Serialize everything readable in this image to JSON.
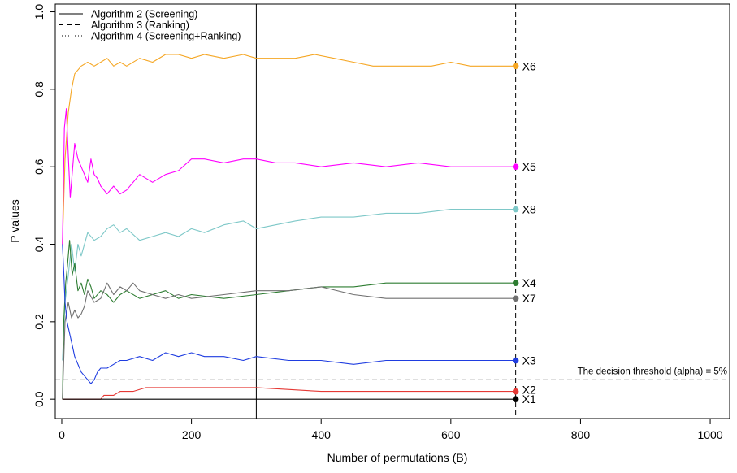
{
  "chart_data": {
    "type": "line",
    "title": "",
    "xlabel": "Number of permutations (B)",
    "ylabel": "P  values",
    "xlim": [
      -10,
      1030
    ],
    "ylim": [
      -0.05,
      1.02
    ],
    "x_ticks": [
      0,
      200,
      400,
      600,
      800,
      1000
    ],
    "y_ticks": [
      0.0,
      0.2,
      0.4,
      0.6,
      0.8,
      1.0
    ],
    "x_tick_labels": [
      "0",
      "200",
      "400",
      "600",
      "800",
      "1000"
    ],
    "y_tick_labels": [
      "0.0",
      "0.2",
      "0.4",
      "0.6",
      "0.8",
      "1.0"
    ],
    "legend": {
      "position": "top-left",
      "entries": [
        {
          "label": "Algorithm 2 (Screening)",
          "style": "solid"
        },
        {
          "label": "Algorithm 3 (Ranking)",
          "style": "dashed"
        },
        {
          "label": "Algorithm 4 (Screening+Ranking)",
          "style": "dotted"
        }
      ]
    },
    "reference_lines": [
      {
        "orientation": "vertical",
        "x": 300,
        "style": "solid"
      },
      {
        "orientation": "vertical",
        "x": 700,
        "style": "dashed"
      },
      {
        "orientation": "horizontal",
        "y": 0.05,
        "style": "dashed",
        "label": "The decision threshold (alpha) = 5%"
      }
    ],
    "series": [
      {
        "name": "X6",
        "color": "#f5a623",
        "x": [
          1,
          5,
          10,
          15,
          20,
          30,
          40,
          50,
          60,
          70,
          80,
          90,
          100,
          120,
          140,
          160,
          180,
          200,
          220,
          250,
          280,
          300,
          330,
          360,
          390,
          420,
          450,
          480,
          510,
          540,
          570,
          600,
          630,
          660,
          700
        ],
        "y": [
          0.4,
          0.62,
          0.74,
          0.8,
          0.84,
          0.86,
          0.87,
          0.86,
          0.87,
          0.88,
          0.86,
          0.87,
          0.86,
          0.88,
          0.87,
          0.89,
          0.89,
          0.88,
          0.89,
          0.88,
          0.89,
          0.88,
          0.88,
          0.88,
          0.89,
          0.88,
          0.87,
          0.86,
          0.86,
          0.86,
          0.86,
          0.87,
          0.86,
          0.86,
          0.86
        ]
      },
      {
        "name": "X5",
        "color": "#ff00ff",
        "x": [
          1,
          4,
          7,
          10,
          13,
          17,
          20,
          25,
          30,
          35,
          40,
          45,
          50,
          55,
          60,
          65,
          70,
          80,
          90,
          100,
          110,
          120,
          140,
          160,
          180,
          200,
          220,
          250,
          280,
          300,
          330,
          360,
          400,
          450,
          500,
          550,
          600,
          650,
          700
        ],
        "y": [
          0.4,
          0.7,
          0.75,
          0.63,
          0.52,
          0.6,
          0.66,
          0.62,
          0.6,
          0.58,
          0.56,
          0.62,
          0.58,
          0.57,
          0.55,
          0.54,
          0.53,
          0.55,
          0.53,
          0.54,
          0.56,
          0.58,
          0.56,
          0.58,
          0.59,
          0.62,
          0.62,
          0.61,
          0.62,
          0.62,
          0.61,
          0.61,
          0.6,
          0.61,
          0.6,
          0.61,
          0.6,
          0.6,
          0.6
        ]
      },
      {
        "name": "X8",
        "color": "#7ec8c8",
        "x": [
          1,
          5,
          10,
          15,
          20,
          25,
          30,
          40,
          50,
          60,
          70,
          80,
          90,
          100,
          120,
          140,
          160,
          180,
          200,
          220,
          250,
          280,
          300,
          330,
          360,
          400,
          450,
          500,
          550,
          600,
          650,
          700
        ],
        "y": [
          0.1,
          0.25,
          0.32,
          0.4,
          0.33,
          0.4,
          0.37,
          0.43,
          0.41,
          0.42,
          0.44,
          0.45,
          0.43,
          0.44,
          0.41,
          0.42,
          0.43,
          0.42,
          0.44,
          0.43,
          0.45,
          0.46,
          0.44,
          0.45,
          0.46,
          0.47,
          0.47,
          0.48,
          0.48,
          0.49,
          0.49,
          0.49
        ]
      },
      {
        "name": "X4",
        "color": "#2e7d32",
        "x": [
          1,
          3,
          6,
          9,
          12,
          16,
          20,
          25,
          30,
          35,
          40,
          45,
          50,
          60,
          70,
          80,
          90,
          100,
          120,
          140,
          160,
          180,
          200,
          250,
          300,
          350,
          400,
          450,
          500,
          550,
          600,
          650,
          700
        ],
        "y": [
          0.0,
          0.2,
          0.3,
          0.35,
          0.41,
          0.32,
          0.35,
          0.28,
          0.3,
          0.27,
          0.31,
          0.29,
          0.26,
          0.28,
          0.27,
          0.25,
          0.27,
          0.28,
          0.26,
          0.27,
          0.28,
          0.26,
          0.27,
          0.26,
          0.27,
          0.28,
          0.29,
          0.29,
          0.3,
          0.3,
          0.3,
          0.3,
          0.3
        ]
      },
      {
        "name": "X7",
        "color": "#707070",
        "x": [
          1,
          5,
          10,
          15,
          20,
          25,
          30,
          35,
          40,
          50,
          60,
          70,
          80,
          90,
          100,
          110,
          120,
          140,
          160,
          180,
          200,
          250,
          300,
          350,
          400,
          450,
          500,
          550,
          600,
          650,
          700
        ],
        "y": [
          0.0,
          0.2,
          0.25,
          0.21,
          0.23,
          0.21,
          0.22,
          0.24,
          0.28,
          0.25,
          0.26,
          0.3,
          0.27,
          0.29,
          0.28,
          0.3,
          0.28,
          0.27,
          0.26,
          0.27,
          0.26,
          0.27,
          0.28,
          0.28,
          0.29,
          0.27,
          0.26,
          0.26,
          0.26,
          0.26,
          0.26
        ]
      },
      {
        "name": "X3",
        "color": "#1f3de0",
        "x": [
          1,
          3,
          5,
          8,
          12,
          16,
          20,
          30,
          40,
          45,
          50,
          55,
          60,
          70,
          80,
          90,
          100,
          120,
          140,
          160,
          180,
          200,
          220,
          250,
          280,
          300,
          350,
          400,
          450,
          500,
          550,
          600,
          650,
          700
        ],
        "y": [
          0.4,
          0.33,
          0.25,
          0.2,
          0.17,
          0.14,
          0.11,
          0.07,
          0.05,
          0.04,
          0.05,
          0.07,
          0.08,
          0.08,
          0.09,
          0.1,
          0.1,
          0.11,
          0.1,
          0.12,
          0.11,
          0.12,
          0.11,
          0.11,
          0.1,
          0.11,
          0.1,
          0.1,
          0.09,
          0.1,
          0.1,
          0.1,
          0.1,
          0.1
        ]
      },
      {
        "name": "X2",
        "color": "#e53935",
        "x": [
          1,
          60,
          65,
          80,
          90,
          100,
          110,
          130,
          140,
          160,
          180,
          200,
          250,
          300,
          400,
          500,
          600,
          700
        ],
        "y": [
          0.0,
          0.0,
          0.01,
          0.01,
          0.02,
          0.02,
          0.02,
          0.03,
          0.03,
          0.03,
          0.03,
          0.03,
          0.03,
          0.03,
          0.02,
          0.02,
          0.02,
          0.02
        ]
      },
      {
        "name": "X1",
        "color": "#000000",
        "x": [
          1,
          700
        ],
        "y": [
          0.0,
          0.0
        ]
      }
    ]
  }
}
